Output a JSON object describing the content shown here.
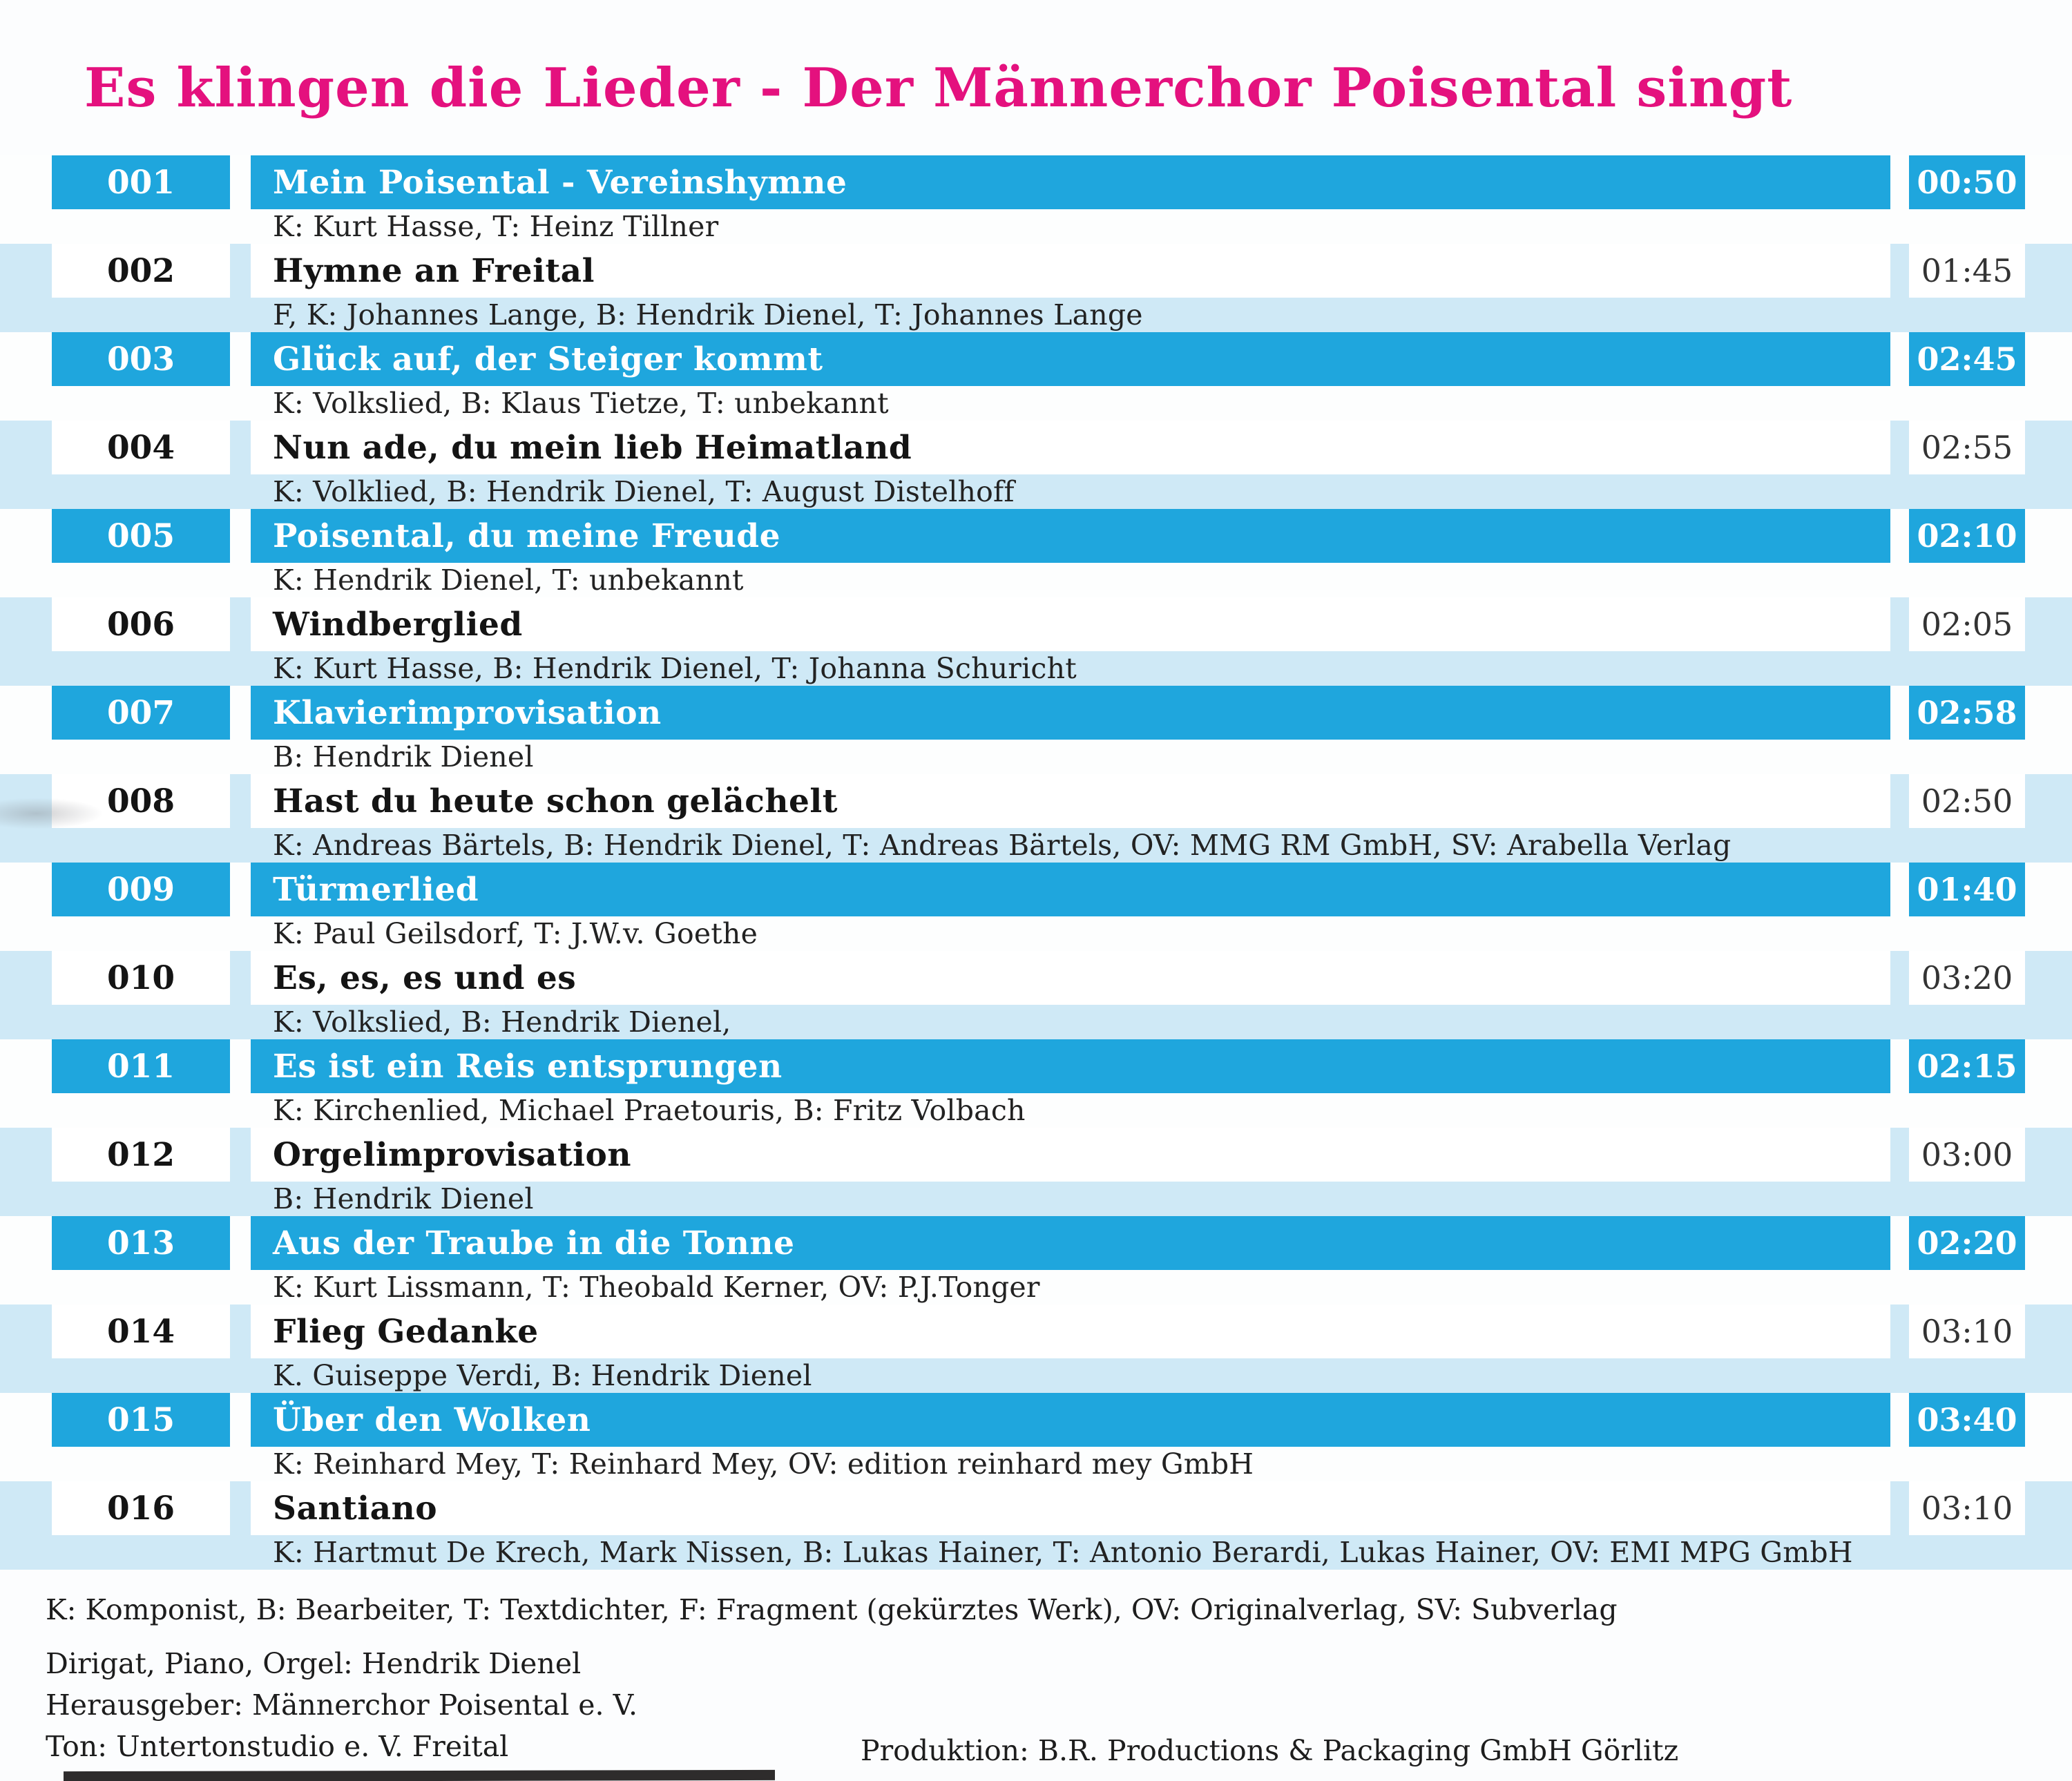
{
  "header": {
    "title": "Es klingen die Lieder - Der Männerchor Poisental singt"
  },
  "tracks": [
    {
      "number": "001",
      "title": "Mein Poisental - Vereinshymne",
      "credits": "K: Kurt Hasse, T: Heinz Tillner",
      "duration": "00:50"
    },
    {
      "number": "002",
      "title": "Hymne an Freital",
      "credits": "F, K: Johannes Lange, B: Hendrik Dienel, T: Johannes Lange",
      "duration": "01:45"
    },
    {
      "number": "003",
      "title": "Glück auf, der Steiger kommt",
      "credits": "K: Volkslied, B: Klaus Tietze, T: unbekannt",
      "duration": "02:45"
    },
    {
      "number": "004",
      "title": "Nun ade, du mein lieb Heimatland",
      "credits": "K: Volklied, B: Hendrik Dienel, T: August Distelhoff",
      "duration": "02:55"
    },
    {
      "number": "005",
      "title": "Poisental, du meine Freude",
      "credits": "K: Hendrik Dienel, T: unbekannt",
      "duration": "02:10"
    },
    {
      "number": "006",
      "title": "Windberglied",
      "credits": "K: Kurt Hasse, B: Hendrik Dienel, T: Johanna Schuricht",
      "duration": "02:05"
    },
    {
      "number": "007",
      "title": "Klavierimprovisation",
      "credits": "B: Hendrik Dienel",
      "duration": "02:58"
    },
    {
      "number": "008",
      "title": "Hast du heute schon gelächelt",
      "credits": "K: Andreas Bärtels, B: Hendrik Dienel, T: Andreas Bärtels, OV: MMG RM GmbH, SV: Arabella Verlag",
      "duration": "02:50"
    },
    {
      "number": "009",
      "title": "Türmerlied",
      "credits": "K: Paul Geilsdorf, T: J.W.v. Goethe",
      "duration": "01:40"
    },
    {
      "number": "010",
      "title": "Es, es, es und es",
      "credits": "K: Volkslied, B: Hendrik Dienel,",
      "duration": "03:20"
    },
    {
      "number": "011",
      "title": "Es ist ein Reis entsprungen",
      "credits": "K: Kirchenlied, Michael Praetouris, B: Fritz Volbach",
      "duration": "02:15"
    },
    {
      "number": "012",
      "title": "Orgelimprovisation",
      "credits": "B: Hendrik Dienel",
      "duration": "03:00"
    },
    {
      "number": "013",
      "title": "Aus der Traube in die Tonne",
      "credits": "K: Kurt Lissmann, T: Theobald Kerner, OV: P.J.Tonger",
      "duration": "02:20"
    },
    {
      "number": "014",
      "title": "Flieg Gedanke",
      "credits": "K. Guiseppe Verdi, B: Hendrik Dienel",
      "duration": "03:10"
    },
    {
      "number": "015",
      "title": "Über den Wolken",
      "credits": "K: Reinhard Mey, T: Reinhard Mey, OV: edition reinhard mey GmbH",
      "duration": "03:40"
    },
    {
      "number": "016",
      "title": "Santiano",
      "credits": "K: Hartmut De Krech, Mark Nissen, B: Lukas Hainer, T: Antonio Berardi, Lukas Hainer, OV: EMI MPG GmbH",
      "duration": "03:10"
    }
  ],
  "footer": {
    "legend": "K: Komponist, B: Bearbeiter, T: Textdichter, F: Fragment (gekürztes Werk), OV: Originalverlag, SV: Subverlag",
    "line_dirigat": "Dirigat, Piano, Orgel: Hendrik Dienel",
    "line_herausgeber": "Herausgeber: Männerchor Poisental e. V.",
    "line_ton": "Ton: Untertonstudio e. V. Freital",
    "line_produktion": "Produktion: B.R. Productions & Packaging GmbH Görlitz"
  },
  "colors": {
    "accent_blue": "#1fa6dd",
    "stripe_light_blue": "#cfe9f6",
    "title_magenta": "#e4117e"
  }
}
